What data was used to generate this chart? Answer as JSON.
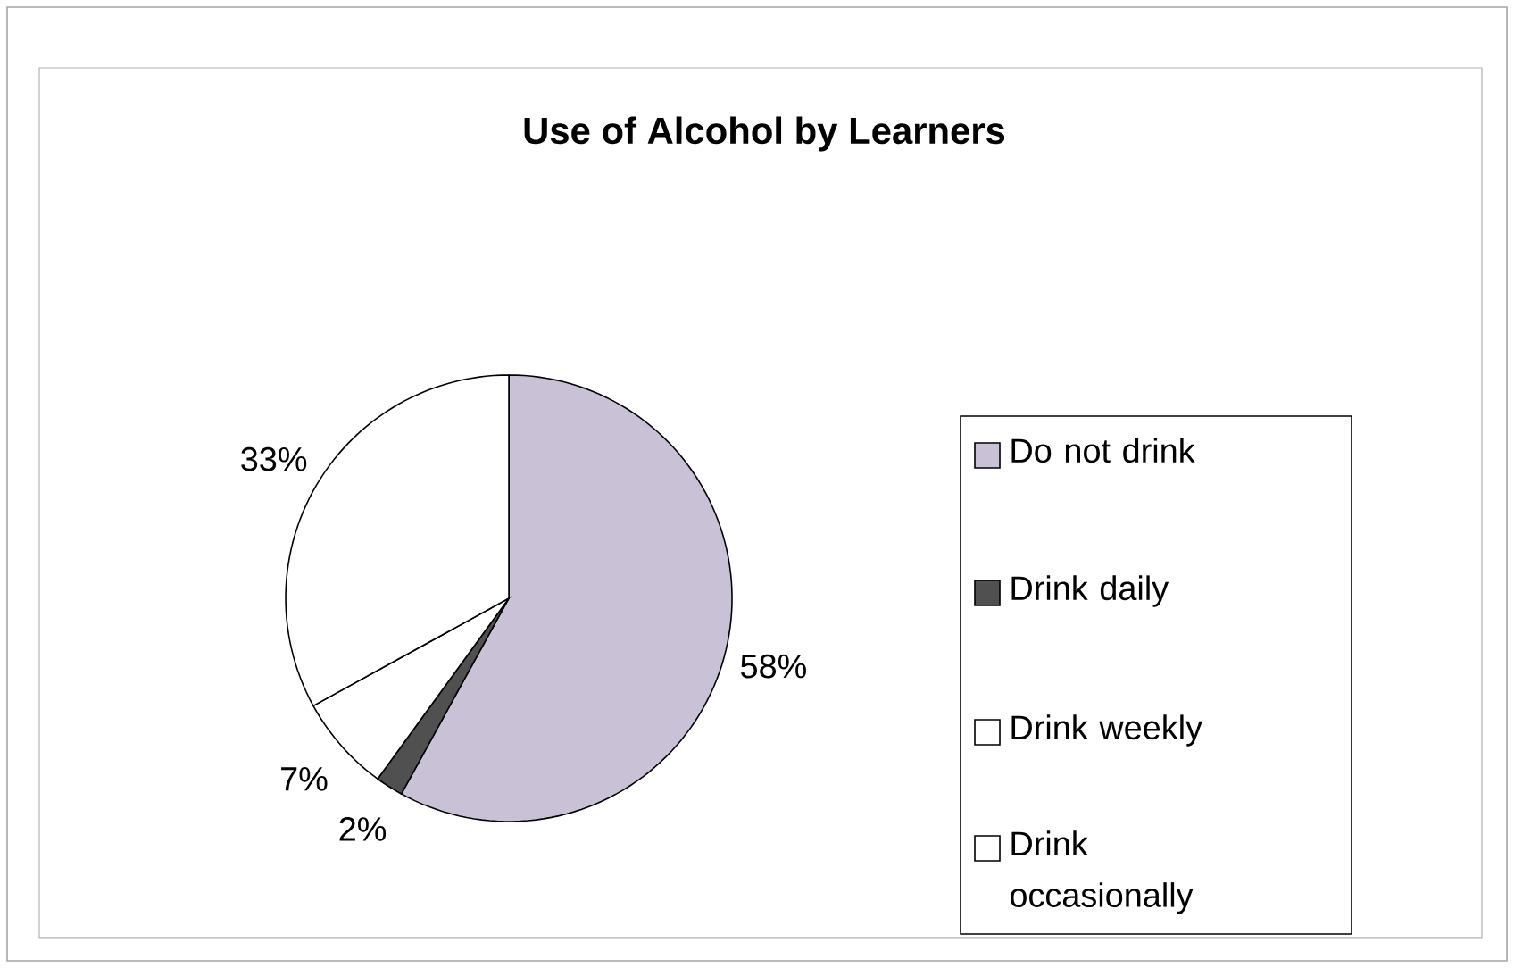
{
  "chart_data": {
    "type": "pie",
    "title": "Use of Alcohol by Learners",
    "categories": [
      "Do not drink",
      "Drink daily",
      "Drink weekly",
      "Drink occasionally"
    ],
    "values": [
      58,
      2,
      7,
      33
    ],
    "colors": [
      "#c9c2d6",
      "#505050",
      "#ffffff",
      "#ffffff"
    ],
    "value_labels": [
      "58%",
      "2%",
      "7%",
      "33%"
    ],
    "legend": "right"
  }
}
